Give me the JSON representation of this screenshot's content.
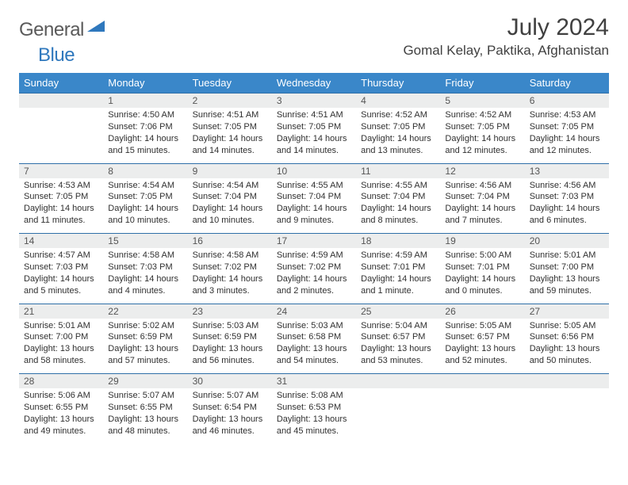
{
  "logo": {
    "word1": "General",
    "word2": "Blue"
  },
  "title": "July 2024",
  "location": "Gomal Kelay, Paktika, Afghanistan",
  "colors": {
    "header_bg": "#3a87c9",
    "header_text": "#ffffff",
    "daynum_bg": "#eceded",
    "border": "#2f6fa8",
    "logo_gray": "#5a5a5a",
    "logo_blue": "#2f78bd"
  },
  "weekdays": [
    "Sunday",
    "Monday",
    "Tuesday",
    "Wednesday",
    "Thursday",
    "Friday",
    "Saturday"
  ],
  "weeks": [
    {
      "nums": [
        "",
        "1",
        "2",
        "3",
        "4",
        "5",
        "6"
      ],
      "cells": [
        {
          "sunrise": "",
          "sunset": "",
          "daylight": ""
        },
        {
          "sunrise": "Sunrise: 4:50 AM",
          "sunset": "Sunset: 7:06 PM",
          "daylight": "Daylight: 14 hours and 15 minutes."
        },
        {
          "sunrise": "Sunrise: 4:51 AM",
          "sunset": "Sunset: 7:05 PM",
          "daylight": "Daylight: 14 hours and 14 minutes."
        },
        {
          "sunrise": "Sunrise: 4:51 AM",
          "sunset": "Sunset: 7:05 PM",
          "daylight": "Daylight: 14 hours and 14 minutes."
        },
        {
          "sunrise": "Sunrise: 4:52 AM",
          "sunset": "Sunset: 7:05 PM",
          "daylight": "Daylight: 14 hours and 13 minutes."
        },
        {
          "sunrise": "Sunrise: 4:52 AM",
          "sunset": "Sunset: 7:05 PM",
          "daylight": "Daylight: 14 hours and 12 minutes."
        },
        {
          "sunrise": "Sunrise: 4:53 AM",
          "sunset": "Sunset: 7:05 PM",
          "daylight": "Daylight: 14 hours and 12 minutes."
        }
      ]
    },
    {
      "nums": [
        "7",
        "8",
        "9",
        "10",
        "11",
        "12",
        "13"
      ],
      "cells": [
        {
          "sunrise": "Sunrise: 4:53 AM",
          "sunset": "Sunset: 7:05 PM",
          "daylight": "Daylight: 14 hours and 11 minutes."
        },
        {
          "sunrise": "Sunrise: 4:54 AM",
          "sunset": "Sunset: 7:05 PM",
          "daylight": "Daylight: 14 hours and 10 minutes."
        },
        {
          "sunrise": "Sunrise: 4:54 AM",
          "sunset": "Sunset: 7:04 PM",
          "daylight": "Daylight: 14 hours and 10 minutes."
        },
        {
          "sunrise": "Sunrise: 4:55 AM",
          "sunset": "Sunset: 7:04 PM",
          "daylight": "Daylight: 14 hours and 9 minutes."
        },
        {
          "sunrise": "Sunrise: 4:55 AM",
          "sunset": "Sunset: 7:04 PM",
          "daylight": "Daylight: 14 hours and 8 minutes."
        },
        {
          "sunrise": "Sunrise: 4:56 AM",
          "sunset": "Sunset: 7:04 PM",
          "daylight": "Daylight: 14 hours and 7 minutes."
        },
        {
          "sunrise": "Sunrise: 4:56 AM",
          "sunset": "Sunset: 7:03 PM",
          "daylight": "Daylight: 14 hours and 6 minutes."
        }
      ]
    },
    {
      "nums": [
        "14",
        "15",
        "16",
        "17",
        "18",
        "19",
        "20"
      ],
      "cells": [
        {
          "sunrise": "Sunrise: 4:57 AM",
          "sunset": "Sunset: 7:03 PM",
          "daylight": "Daylight: 14 hours and 5 minutes."
        },
        {
          "sunrise": "Sunrise: 4:58 AM",
          "sunset": "Sunset: 7:03 PM",
          "daylight": "Daylight: 14 hours and 4 minutes."
        },
        {
          "sunrise": "Sunrise: 4:58 AM",
          "sunset": "Sunset: 7:02 PM",
          "daylight": "Daylight: 14 hours and 3 minutes."
        },
        {
          "sunrise": "Sunrise: 4:59 AM",
          "sunset": "Sunset: 7:02 PM",
          "daylight": "Daylight: 14 hours and 2 minutes."
        },
        {
          "sunrise": "Sunrise: 4:59 AM",
          "sunset": "Sunset: 7:01 PM",
          "daylight": "Daylight: 14 hours and 1 minute."
        },
        {
          "sunrise": "Sunrise: 5:00 AM",
          "sunset": "Sunset: 7:01 PM",
          "daylight": "Daylight: 14 hours and 0 minutes."
        },
        {
          "sunrise": "Sunrise: 5:01 AM",
          "sunset": "Sunset: 7:00 PM",
          "daylight": "Daylight: 13 hours and 59 minutes."
        }
      ]
    },
    {
      "nums": [
        "21",
        "22",
        "23",
        "24",
        "25",
        "26",
        "27"
      ],
      "cells": [
        {
          "sunrise": "Sunrise: 5:01 AM",
          "sunset": "Sunset: 7:00 PM",
          "daylight": "Daylight: 13 hours and 58 minutes."
        },
        {
          "sunrise": "Sunrise: 5:02 AM",
          "sunset": "Sunset: 6:59 PM",
          "daylight": "Daylight: 13 hours and 57 minutes."
        },
        {
          "sunrise": "Sunrise: 5:03 AM",
          "sunset": "Sunset: 6:59 PM",
          "daylight": "Daylight: 13 hours and 56 minutes."
        },
        {
          "sunrise": "Sunrise: 5:03 AM",
          "sunset": "Sunset: 6:58 PM",
          "daylight": "Daylight: 13 hours and 54 minutes."
        },
        {
          "sunrise": "Sunrise: 5:04 AM",
          "sunset": "Sunset: 6:57 PM",
          "daylight": "Daylight: 13 hours and 53 minutes."
        },
        {
          "sunrise": "Sunrise: 5:05 AM",
          "sunset": "Sunset: 6:57 PM",
          "daylight": "Daylight: 13 hours and 52 minutes."
        },
        {
          "sunrise": "Sunrise: 5:05 AM",
          "sunset": "Sunset: 6:56 PM",
          "daylight": "Daylight: 13 hours and 50 minutes."
        }
      ]
    },
    {
      "nums": [
        "28",
        "29",
        "30",
        "31",
        "",
        "",
        ""
      ],
      "cells": [
        {
          "sunrise": "Sunrise: 5:06 AM",
          "sunset": "Sunset: 6:55 PM",
          "daylight": "Daylight: 13 hours and 49 minutes."
        },
        {
          "sunrise": "Sunrise: 5:07 AM",
          "sunset": "Sunset: 6:55 PM",
          "daylight": "Daylight: 13 hours and 48 minutes."
        },
        {
          "sunrise": "Sunrise: 5:07 AM",
          "sunset": "Sunset: 6:54 PM",
          "daylight": "Daylight: 13 hours and 46 minutes."
        },
        {
          "sunrise": "Sunrise: 5:08 AM",
          "sunset": "Sunset: 6:53 PM",
          "daylight": "Daylight: 13 hours and 45 minutes."
        },
        {
          "sunrise": "",
          "sunset": "",
          "daylight": ""
        },
        {
          "sunrise": "",
          "sunset": "",
          "daylight": ""
        },
        {
          "sunrise": "",
          "sunset": "",
          "daylight": ""
        }
      ]
    }
  ]
}
